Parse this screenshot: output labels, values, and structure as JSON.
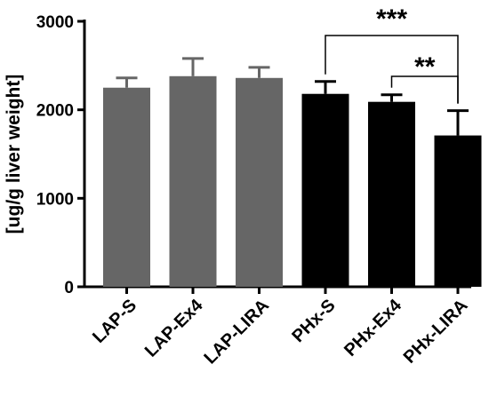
{
  "chart_data": {
    "type": "bar",
    "title": "",
    "xlabel": "",
    "ylabel": "[ug/g liver weight]",
    "ylim": [
      0,
      3000
    ],
    "yticks": [
      0,
      1000,
      2000,
      3000
    ],
    "grid": false,
    "categories": [
      "LAP-S",
      "LAP-Ex4",
      "LAP-LIRA",
      "PHx-S",
      "PHx-Ex4",
      "PHx-LIRA"
    ],
    "values": [
      2250,
      2380,
      2360,
      2180,
      2090,
      1710
    ],
    "errors": [
      110,
      200,
      120,
      140,
      80,
      280
    ],
    "colors": [
      "#666666",
      "#666666",
      "#666666",
      "#000000",
      "#000000",
      "#000000"
    ],
    "significance": [
      {
        "from": "PHx-S",
        "to": "PHx-LIRA",
        "label": "***"
      },
      {
        "from": "PHx-Ex4",
        "to": "PHx-LIRA",
        "label": "**"
      }
    ]
  }
}
